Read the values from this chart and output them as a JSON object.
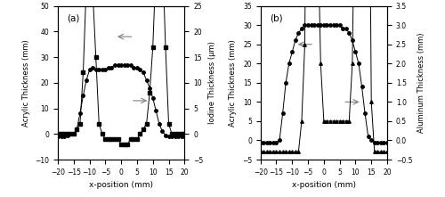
{
  "panel_a": {
    "label": "(a)",
    "x_acrylic": [
      -20,
      -19,
      -18,
      -17,
      -16,
      -15,
      -14,
      -13,
      -12,
      -11,
      -10,
      -9,
      -8,
      -7,
      -6,
      -5,
      -4,
      -3,
      -2,
      -1,
      0,
      1,
      2,
      3,
      4,
      5,
      6,
      7,
      8,
      9,
      10,
      11,
      12,
      13,
      14,
      15,
      16,
      17,
      18,
      19,
      20
    ],
    "y_acrylic": [
      -1,
      -1,
      -1,
      -0.5,
      0,
      0,
      2,
      8,
      15,
      21,
      25,
      26,
      25,
      25,
      25,
      25,
      26,
      26,
      27,
      27,
      27,
      27,
      27,
      27,
      26,
      26,
      25,
      24,
      21,
      18,
      14,
      9,
      4,
      1,
      -0.5,
      -1,
      -1,
      -1,
      -1,
      -1,
      -1
    ],
    "x_iodine": [
      -20,
      -19,
      -18,
      -17,
      -16,
      -15,
      -14,
      -13,
      -12,
      -11,
      -10,
      -9,
      -8,
      -7,
      -6,
      -5,
      -4,
      -3,
      -2,
      -1,
      0,
      1,
      2,
      3,
      4,
      5,
      6,
      7,
      8,
      9,
      10,
      11,
      12,
      13,
      14,
      15,
      16,
      17,
      18,
      19,
      20
    ],
    "y_iodine": [
      0,
      0,
      0,
      0,
      0,
      0,
      1,
      2,
      12,
      29,
      33,
      28,
      15,
      2,
      0,
      -1,
      -1,
      -1,
      -1,
      -1,
      -2,
      -2,
      -2,
      -1,
      -1,
      -1,
      0,
      1,
      2,
      8,
      17,
      33,
      41,
      36,
      17,
      2,
      0,
      0,
      0,
      0,
      0
    ],
    "ylabel_left": "Acrylic Thickness (mm)",
    "ylabel_right": "Iodine Thickness (μm)",
    "ylim_left": [
      -10,
      50
    ],
    "ylim_right": [
      -5,
      25
    ],
    "yticks_left": [
      -10,
      0,
      10,
      20,
      30,
      40,
      50
    ],
    "yticks_right": [
      -5,
      0,
      5,
      10,
      15,
      20,
      25
    ]
  },
  "panel_b": {
    "label": "(b)",
    "x_acrylic": [
      -20,
      -19,
      -18,
      -17,
      -16,
      -15,
      -14,
      -13,
      -12,
      -11,
      -10,
      -9,
      -8,
      -7,
      -6,
      -5,
      -4,
      -3,
      -2,
      -1,
      0,
      1,
      2,
      3,
      4,
      5,
      6,
      7,
      8,
      9,
      10,
      11,
      12,
      13,
      14,
      15,
      16,
      17,
      18,
      19,
      20
    ],
    "y_acrylic": [
      -0.5,
      -0.5,
      -0.5,
      -0.5,
      -0.5,
      -0.5,
      0,
      7,
      15,
      20,
      23,
      26,
      28,
      29,
      30,
      30,
      30,
      30,
      30,
      30,
      30,
      30,
      30,
      30,
      30,
      30,
      29,
      29,
      28,
      26,
      23,
      20,
      14,
      7,
      1,
      0,
      -0.5,
      -0.5,
      -0.5,
      -0.5,
      -0.5
    ],
    "x_aluminum": [
      -20,
      -19,
      -18,
      -17,
      -16,
      -15,
      -14,
      -13,
      -12,
      -11,
      -10,
      -9,
      -8,
      -7,
      -6,
      -5,
      -4,
      -3,
      -2,
      -1,
      0,
      1,
      2,
      3,
      4,
      5,
      6,
      7,
      8,
      9,
      10,
      11,
      12,
      13,
      14,
      15,
      16,
      17,
      18,
      19,
      20
    ],
    "y_aluminum": [
      -0.3,
      -0.3,
      -0.3,
      -0.3,
      -0.3,
      -0.3,
      -0.3,
      -0.3,
      -0.3,
      -0.3,
      -0.3,
      -0.3,
      -0.3,
      0.5,
      2.5,
      14,
      13.5,
      10,
      6,
      2,
      0.5,
      0.5,
      0.5,
      0.5,
      0.5,
      0.5,
      0.5,
      0.5,
      0.5,
      2,
      8,
      14,
      23,
      22,
      12,
      1,
      -0.3,
      -0.3,
      -0.3,
      -0.3,
      -0.3
    ],
    "ylabel_left": "Acrylic Thickness (mm)",
    "ylabel_right": "Aluminum Thickness (mm)",
    "ylim_left": [
      -5,
      35
    ],
    "ylim_right": [
      -0.5,
      3.5
    ],
    "yticks_left": [
      -5,
      0,
      5,
      10,
      15,
      20,
      25,
      30,
      35
    ],
    "yticks_right": [
      -0.5,
      0.0,
      0.5,
      1.0,
      1.5,
      2.0,
      2.5,
      3.0,
      3.5
    ]
  },
  "xlabel": "x-position (mm)",
  "xlim": [
    -20,
    20
  ],
  "xticks": [
    -20,
    -15,
    -10,
    -5,
    0,
    5,
    10,
    15,
    20
  ]
}
